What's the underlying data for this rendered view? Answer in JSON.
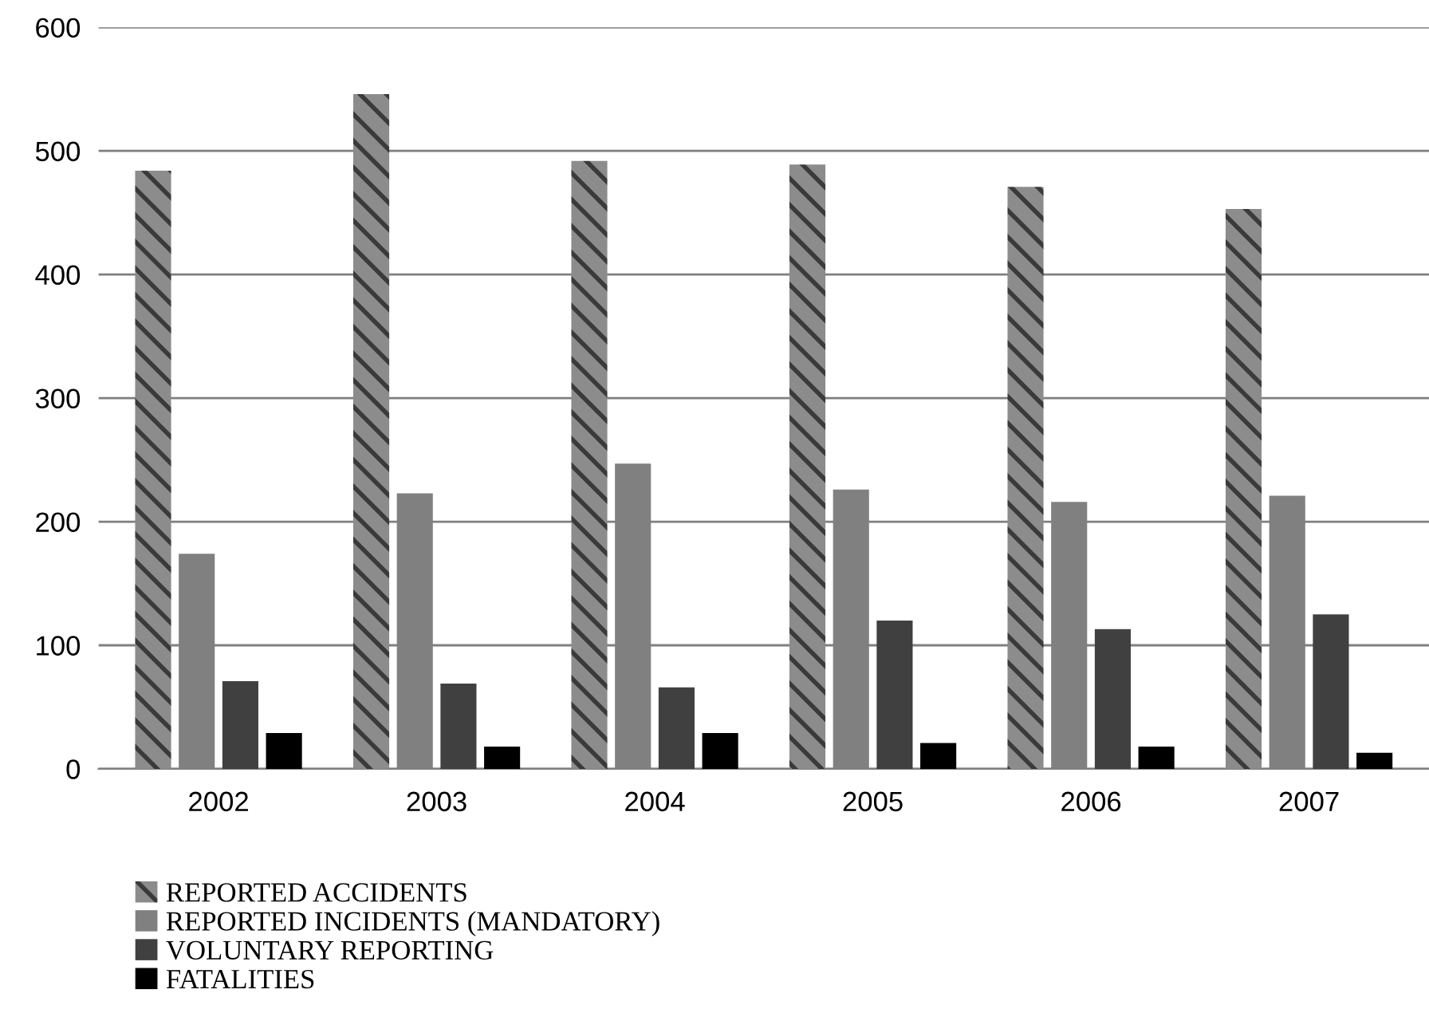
{
  "chart_data": {
    "type": "bar",
    "categories": [
      "2002",
      "2003",
      "2004",
      "2005",
      "2006",
      "2007"
    ],
    "series": [
      {
        "name": "REPORTED ACCIDENTS",
        "color": "#8c8c8c",
        "values": [
          484,
          546,
          492,
          489,
          471,
          453
        ]
      },
      {
        "name": "REPORTED INCIDENTS (MANDATORY)",
        "color": "#808080",
        "values": [
          174,
          223,
          247,
          226,
          216,
          221
        ]
      },
      {
        "name": "VOLUNTARY REPORTING",
        "color": "#404040",
        "values": [
          71,
          69,
          66,
          120,
          113,
          125
        ]
      },
      {
        "name": "FATALITIES",
        "color": "#000000",
        "values": [
          29,
          18,
          29,
          21,
          18,
          13
        ]
      }
    ],
    "ylim": [
      0,
      600
    ],
    "yticks": [
      0,
      100,
      200,
      300,
      400,
      500,
      600
    ],
    "grid": "y",
    "legend": "bottom left"
  }
}
